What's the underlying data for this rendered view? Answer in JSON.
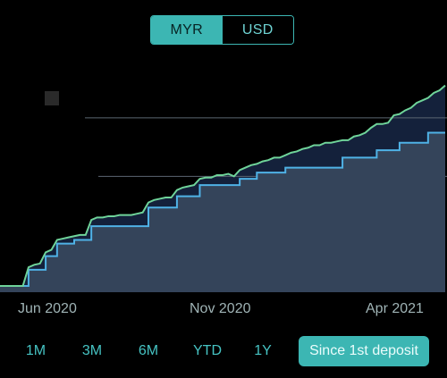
{
  "currency": {
    "options": [
      "MYR",
      "USD"
    ],
    "selected": "MYR"
  },
  "chart_data": {
    "type": "area",
    "x_tick_labels": [
      "Jun 2020",
      "Nov 2020",
      "Apr 2021"
    ],
    "series": [
      {
        "color": "#6fd49a",
        "values": [
          0.5,
          0.5,
          0.5,
          0.5,
          0.5,
          2.0,
          2.2,
          2.3,
          3.2,
          3.4,
          4.2,
          4.3,
          4.4,
          4.5,
          4.6,
          4.6,
          5.8,
          6.0,
          6.0,
          6.1,
          6.1,
          6.2,
          6.2,
          6.2,
          6.3,
          6.4,
          7.2,
          7.4,
          7.5,
          7.6,
          7.6,
          8.2,
          8.4,
          8.5,
          8.6,
          9.1,
          9.2,
          9.2,
          9.4,
          9.4,
          9.5,
          9.3,
          9.8,
          10.0,
          10.2,
          10.3,
          10.5,
          10.6,
          10.8,
          10.8,
          11.0,
          11.2,
          11.3,
          11.5,
          11.6,
          11.8,
          11.8,
          12.0,
          12.0,
          12.1,
          12.2,
          12.2,
          12.5,
          12.6,
          12.8,
          13.2,
          13.5,
          13.5,
          13.6,
          14.2,
          14.3,
          14.6,
          14.8,
          15.2,
          15.4,
          15.6,
          16.0,
          16.2,
          16.6
        ]
      },
      {
        "color": "#4fb2e6",
        "values": [
          0.5,
          0.5,
          0.5,
          0.5,
          0.5,
          1.8,
          1.8,
          1.8,
          2.9,
          2.9,
          3.9,
          3.9,
          3.9,
          4.2,
          4.2,
          4.2,
          5.3,
          5.3,
          5.3,
          5.3,
          5.3,
          5.3,
          5.3,
          5.3,
          5.3,
          5.3,
          6.8,
          6.8,
          6.8,
          6.8,
          6.8,
          7.7,
          7.7,
          7.7,
          7.7,
          8.6,
          8.6,
          8.6,
          8.6,
          8.6,
          8.6,
          8.6,
          9.1,
          9.1,
          9.1,
          9.6,
          9.6,
          9.6,
          9.6,
          9.6,
          10.0,
          10.0,
          10.0,
          10.0,
          10.0,
          10.0,
          10.0,
          10.0,
          10.0,
          10.0,
          10.8,
          10.8,
          10.8,
          10.8,
          10.8,
          10.8,
          11.4,
          11.4,
          11.4,
          11.4,
          12.0,
          12.0,
          12.0,
          12.0,
          12.0,
          12.8,
          12.8,
          12.8,
          12.8
        ]
      }
    ],
    "reference_lines": [
      14.0,
      9.3
    ],
    "ylim": [
      0,
      17
    ]
  },
  "range": {
    "options": [
      "1M",
      "3M",
      "6M",
      "YTD",
      "1Y",
      "Since 1st deposit"
    ],
    "selected": "Since 1st deposit"
  }
}
